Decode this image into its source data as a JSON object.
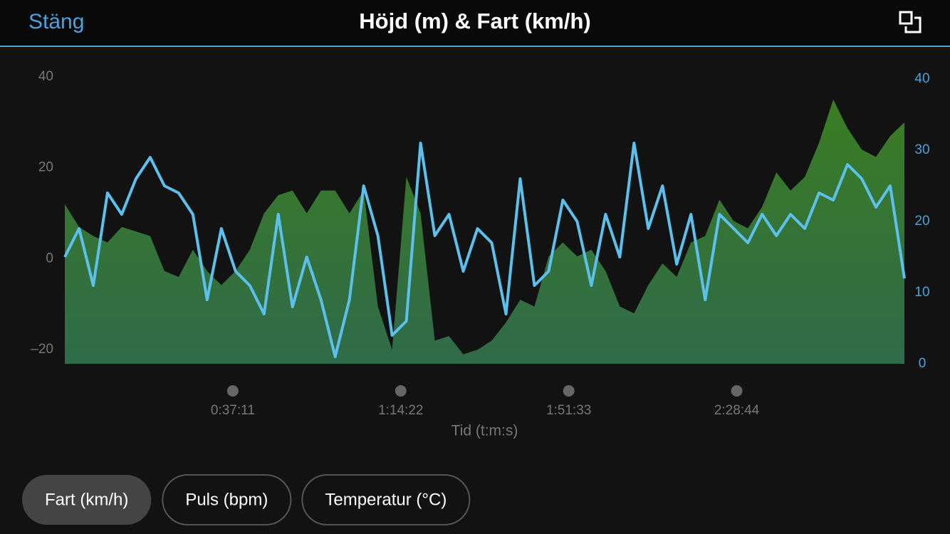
{
  "header": {
    "close": "Stäng"
  },
  "chart_data": {
    "type": "line",
    "title": "Höjd (m) & Fart (km/h)",
    "xlabel": "Tid (t:m:s)",
    "x": [
      0,
      189,
      378,
      567,
      756,
      945,
      1134,
      1323,
      1512,
      1701,
      1890,
      2079,
      2268,
      2457,
      2646,
      2835,
      3024,
      3213,
      3402,
      3591,
      3780,
      3969,
      4158,
      4347,
      4536,
      4725,
      4914,
      5103,
      5292,
      5481,
      5670,
      5859,
      6048,
      6237,
      6426,
      6615,
      6804,
      6993,
      7182,
      7371,
      7560,
      7749,
      7938,
      8127,
      8316,
      8505,
      8694,
      8883,
      9072,
      9261,
      9450,
      9639,
      9828,
      10017,
      10206,
      10395,
      10584,
      10773,
      10962,
      11151
    ],
    "xlim": [
      0,
      11151
    ],
    "xticks": [
      {
        "value": 2231,
        "label": "0:37:11"
      },
      {
        "value": 4462,
        "label": "1:14:22"
      },
      {
        "value": 6693,
        "label": "1:51:33"
      },
      {
        "value": 8924,
        "label": "2:28:44"
      }
    ],
    "ylim": [
      -23.1,
      40
    ],
    "yticks": [
      {
        "value": -20,
        "label": "–20"
      },
      0,
      20,
      40
    ],
    "y2lim": [
      0,
      40.3
    ],
    "y2ticks": [
      0,
      10,
      20,
      30,
      40
    ],
    "series": [
      {
        "type": "area",
        "color": "#3b7a2c",
        "values": [
          12,
          7,
          5,
          3.6,
          7,
          6,
          5,
          -2.7,
          -4,
          2,
          -2.7,
          -5.8,
          -2.7,
          2,
          10,
          14,
          15,
          10,
          15,
          15,
          10,
          15,
          -10.5,
          -20,
          18,
          10,
          -18,
          -17,
          -21,
          -20,
          -18,
          -14,
          -9,
          -10.5,
          0.5,
          3.6,
          0.5,
          2,
          -2.7,
          -10.5,
          -12,
          -5.8,
          -1,
          -4,
          3.6,
          5,
          13,
          8.3,
          6.7,
          11.4,
          19,
          15,
          18,
          25.5,
          35,
          28.7,
          24,
          22.4,
          27,
          30
        ]
      },
      {
        "type": "line",
        "color": "#5bc0eb",
        "axis": "y2",
        "values": [
          15,
          19,
          11,
          24,
          21,
          26,
          29,
          25,
          24,
          21,
          9,
          19,
          13,
          11,
          7,
          21,
          8,
          15,
          9,
          1,
          9,
          25,
          18,
          4,
          6,
          31,
          18,
          21,
          13,
          19,
          17,
          7,
          26,
          11,
          13,
          23,
          20,
          11,
          21,
          15,
          31,
          19,
          25,
          14,
          21,
          9,
          21,
          19,
          17,
          21,
          18,
          21,
          19,
          24,
          23,
          28,
          26,
          22,
          25,
          12
        ]
      }
    ]
  },
  "buttons": [
    {
      "label": "Fart (km/h)",
      "selected": true
    },
    {
      "label": "Puls (bpm)",
      "selected": false
    },
    {
      "label": "Temperatur (°C)",
      "selected": false
    }
  ]
}
